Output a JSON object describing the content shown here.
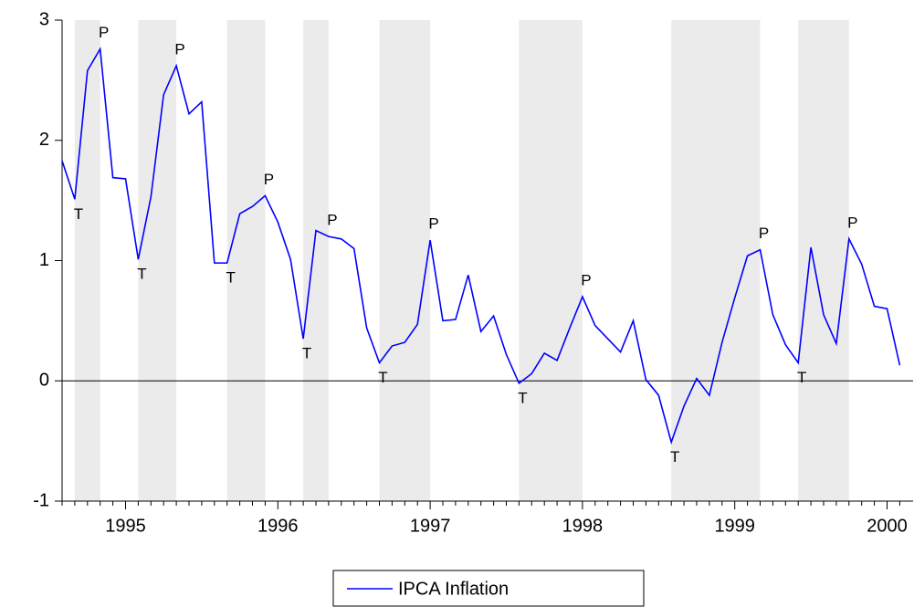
{
  "chart_data": {
    "type": "line",
    "categories": [
      null,
      null,
      null,
      null,
      null,
      "1995",
      null,
      null,
      null,
      null,
      null,
      null,
      null,
      null,
      null,
      null,
      null,
      "1996",
      null,
      null,
      null,
      null,
      null,
      null,
      null,
      null,
      null,
      null,
      null,
      "1997",
      null,
      null,
      null,
      null,
      null,
      null,
      null,
      null,
      null,
      null,
      null,
      "1998",
      null,
      null,
      null,
      null,
      null,
      null,
      null,
      null,
      null,
      null,
      null,
      "1999",
      null,
      null,
      null,
      null,
      null,
      null,
      null,
      null,
      null,
      null,
      null,
      "2000",
      null
    ],
    "series": [
      {
        "name": "IPCA Inflation",
        "color": "#0000ff",
        "values": [
          1.83,
          1.51,
          2.58,
          2.76,
          1.69,
          1.68,
          1.01,
          1.53,
          2.38,
          2.62,
          2.22,
          2.32,
          0.98,
          0.98,
          1.39,
          1.45,
          1.54,
          1.32,
          1.01,
          0.35,
          1.25,
          1.2,
          1.18,
          1.1,
          0.44,
          0.15,
          0.29,
          0.32,
          0.47,
          1.17,
          0.5,
          0.51,
          0.88,
          0.41,
          0.54,
          0.22,
          -0.02,
          0.06,
          0.23,
          0.17,
          0.44,
          0.7,
          0.46,
          0.35,
          0.24,
          0.5,
          0.01,
          -0.12,
          -0.51,
          -0.21,
          0.02,
          -0.12,
          0.32,
          0.69,
          1.04,
          1.09,
          0.55,
          0.3,
          0.15,
          1.11,
          0.55,
          0.31,
          1.18,
          0.97,
          0.62,
          0.6,
          0.13
        ]
      }
    ],
    "point_labels": [
      null,
      "T",
      null,
      "P",
      null,
      null,
      "T",
      null,
      null,
      "P",
      null,
      null,
      null,
      "T",
      null,
      null,
      "P",
      null,
      null,
      "T",
      null,
      "P",
      null,
      null,
      null,
      "T",
      null,
      null,
      null,
      "P",
      null,
      null,
      null,
      null,
      null,
      null,
      "T",
      null,
      null,
      null,
      null,
      "P",
      null,
      null,
      null,
      null,
      null,
      null,
      "T",
      null,
      null,
      null,
      null,
      null,
      null,
      "P",
      null,
      null,
      "T",
      null,
      null,
      null,
      "P",
      null,
      null,
      null,
      null
    ],
    "shade_color": "#ebebeb",
    "ylim": [
      -1,
      3
    ],
    "yticks": [
      -1,
      0,
      1,
      2,
      3
    ]
  }
}
